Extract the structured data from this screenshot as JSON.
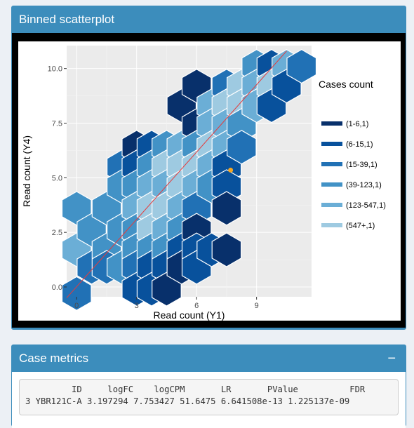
{
  "plot_box": {
    "title": "Binned scatterplot"
  },
  "metrics_box": {
    "title": "Case metrics",
    "collapse_label": "−"
  },
  "metrics_table": {
    "header_line": "         ID     logFC    logCPM       LR       PValue          FDR",
    "row_line": "3 YBR121C-A 3.197294 7.753427 51.6475 6.641508e-13 1.225137e-09"
  },
  "chart_data": {
    "type": "hexbin",
    "xlabel": "Read count (Y1)",
    "ylabel": "Read count (Y4)",
    "x_ticks": [
      0,
      3,
      6,
      9
    ],
    "x_tick_labels": [
      "0",
      "3",
      "6",
      "9"
    ],
    "y_ticks": [
      0,
      2.5,
      5,
      7.5,
      10
    ],
    "y_tick_labels": [
      "0.0",
      "2.5",
      "5.0",
      "7.5",
      "10.0"
    ],
    "xlim": [
      -0.5,
      11.75
    ],
    "ylim": [
      -0.45,
      11.05
    ],
    "legend": {
      "title": "Cases count",
      "position": "right",
      "entries": [
        {
          "label": "(1-6,1)",
          "color": "#08306b"
        },
        {
          "label": "(6-15,1)",
          "color": "#08519c"
        },
        {
          "label": "(15-39,1)",
          "color": "#2171b5"
        },
        {
          "label": "(39-123,1)",
          "color": "#4292c6"
        },
        {
          "label": "(123-547,1)",
          "color": "#6baed6"
        },
        {
          "label": "(547+,1)",
          "color": "#9ecae1"
        }
      ]
    },
    "hex_radius_x": 0.75,
    "hexbins": [
      {
        "x": 0.0,
        "y": 3.6,
        "bin": 3
      },
      {
        "x": 0.0,
        "y": 1.7,
        "bin": 4
      },
      {
        "x": 0.0,
        "y": -0.3,
        "bin": 2
      },
      {
        "x": 0.75,
        "y": 2.6,
        "bin": 3
      },
      {
        "x": 0.75,
        "y": 0.9,
        "bin": 2
      },
      {
        "x": 1.5,
        "y": 3.6,
        "bin": 3
      },
      {
        "x": 1.5,
        "y": 1.7,
        "bin": 3
      },
      {
        "x": 1.5,
        "y": 0.9,
        "bin": 2
      },
      {
        "x": 2.25,
        "y": 5.5,
        "bin": 2
      },
      {
        "x": 2.25,
        "y": 4.6,
        "bin": 3
      },
      {
        "x": 2.25,
        "y": 2.6,
        "bin": 3
      },
      {
        "x": 2.25,
        "y": 0.9,
        "bin": 3
      },
      {
        "x": 3.0,
        "y": 6.4,
        "bin": 0
      },
      {
        "x": 3.0,
        "y": 5.5,
        "bin": 1
      },
      {
        "x": 3.0,
        "y": 4.6,
        "bin": 3
      },
      {
        "x": 3.0,
        "y": 3.6,
        "bin": 4
      },
      {
        "x": 3.0,
        "y": 2.6,
        "bin": 3
      },
      {
        "x": 3.0,
        "y": 1.7,
        "bin": 3
      },
      {
        "x": 3.0,
        "y": 0.9,
        "bin": 2
      },
      {
        "x": 3.0,
        "y": -0.1,
        "bin": 1
      },
      {
        "x": 3.75,
        "y": 6.4,
        "bin": 1
      },
      {
        "x": 3.75,
        "y": 5.5,
        "bin": 3
      },
      {
        "x": 3.75,
        "y": 4.6,
        "bin": 4
      },
      {
        "x": 3.75,
        "y": 3.6,
        "bin": 5
      },
      {
        "x": 3.75,
        "y": 2.6,
        "bin": 5
      },
      {
        "x": 3.75,
        "y": 1.7,
        "bin": 3
      },
      {
        "x": 3.75,
        "y": 0.9,
        "bin": 1
      },
      {
        "x": 3.75,
        "y": -0.1,
        "bin": 1
      },
      {
        "x": 4.5,
        "y": 6.4,
        "bin": 3
      },
      {
        "x": 4.5,
        "y": 5.5,
        "bin": 5
      },
      {
        "x": 4.5,
        "y": 4.6,
        "bin": 4
      },
      {
        "x": 4.5,
        "y": 3.6,
        "bin": 5
      },
      {
        "x": 4.5,
        "y": 2.6,
        "bin": 4
      },
      {
        "x": 4.5,
        "y": 1.7,
        "bin": 3
      },
      {
        "x": 4.5,
        "y": 0.9,
        "bin": 1
      },
      {
        "x": 4.5,
        "y": -0.1,
        "bin": 0
      },
      {
        "x": 5.25,
        "y": 8.3,
        "bin": 0
      },
      {
        "x": 5.25,
        "y": 6.4,
        "bin": 4
      },
      {
        "x": 5.25,
        "y": 5.5,
        "bin": 5
      },
      {
        "x": 5.25,
        "y": 4.6,
        "bin": 5
      },
      {
        "x": 5.25,
        "y": 3.6,
        "bin": 4
      },
      {
        "x": 5.25,
        "y": 2.6,
        "bin": 3
      },
      {
        "x": 5.25,
        "y": 1.7,
        "bin": 1
      },
      {
        "x": 5.25,
        "y": 0.9,
        "bin": 0
      },
      {
        "x": 6.0,
        "y": 9.2,
        "bin": 0
      },
      {
        "x": 6.0,
        "y": 7.4,
        "bin": 0
      },
      {
        "x": 6.0,
        "y": 6.4,
        "bin": 3
      },
      {
        "x": 6.0,
        "y": 5.5,
        "bin": 5
      },
      {
        "x": 6.0,
        "y": 4.6,
        "bin": 4
      },
      {
        "x": 6.0,
        "y": 3.6,
        "bin": 2
      },
      {
        "x": 6.0,
        "y": 2.6,
        "bin": 0
      },
      {
        "x": 6.0,
        "y": 1.7,
        "bin": 1
      },
      {
        "x": 6.0,
        "y": 0.9,
        "bin": 1
      },
      {
        "x": 6.75,
        "y": 8.3,
        "bin": 4
      },
      {
        "x": 6.75,
        "y": 7.4,
        "bin": 4
      },
      {
        "x": 6.75,
        "y": 6.4,
        "bin": 5
      },
      {
        "x": 6.75,
        "y": 5.5,
        "bin": 4
      },
      {
        "x": 6.75,
        "y": 4.6,
        "bin": 3
      },
      {
        "x": 6.75,
        "y": 1.7,
        "bin": 1
      },
      {
        "x": 7.5,
        "y": 9.2,
        "bin": 2
      },
      {
        "x": 7.5,
        "y": 8.3,
        "bin": 5
      },
      {
        "x": 7.5,
        "y": 7.4,
        "bin": 4
      },
      {
        "x": 7.5,
        "y": 6.4,
        "bin": 4
      },
      {
        "x": 7.5,
        "y": 5.5,
        "bin": 1
      },
      {
        "x": 7.5,
        "y": 4.6,
        "bin": 1
      },
      {
        "x": 7.5,
        "y": 3.6,
        "bin": 0
      },
      {
        "x": 7.5,
        "y": 1.7,
        "bin": 0
      },
      {
        "x": 8.25,
        "y": 9.2,
        "bin": 5
      },
      {
        "x": 8.25,
        "y": 8.3,
        "bin": 5
      },
      {
        "x": 8.25,
        "y": 7.4,
        "bin": 3
      },
      {
        "x": 8.25,
        "y": 6.4,
        "bin": 2
      },
      {
        "x": 9.0,
        "y": 10.1,
        "bin": 3
      },
      {
        "x": 9.0,
        "y": 9.2,
        "bin": 4
      },
      {
        "x": 9.0,
        "y": 8.3,
        "bin": 4
      },
      {
        "x": 9.75,
        "y": 10.1,
        "bin": 1
      },
      {
        "x": 9.75,
        "y": 9.2,
        "bin": 5
      },
      {
        "x": 9.75,
        "y": 8.3,
        "bin": 1
      },
      {
        "x": 10.5,
        "y": 10.1,
        "bin": 4
      },
      {
        "x": 10.5,
        "y": 9.2,
        "bin": 1
      },
      {
        "x": 11.25,
        "y": 10.1,
        "bin": 2
      }
    ],
    "reference_line": {
      "from": [
        -0.5,
        -0.5
      ],
      "to": [
        10.5,
        10.8
      ],
      "color": "#e63b3b"
    },
    "highlight_point": {
      "x": 7.7,
      "y": 5.35,
      "color": "#f5a623"
    }
  }
}
